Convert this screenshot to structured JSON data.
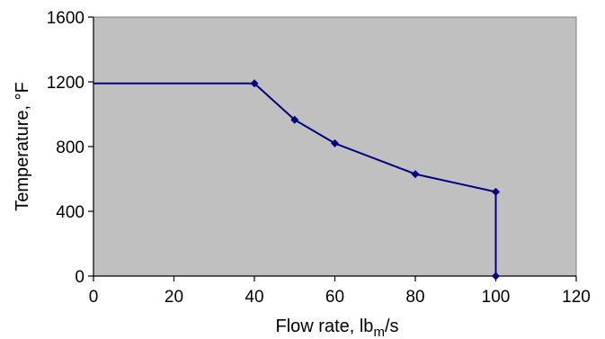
{
  "chart_data": {
    "type": "line",
    "xlabel_main": "Flow rate, lb",
    "xlabel_sub": "m",
    "xlabel_tail": "/s",
    "ylabel": "Temperature, °F",
    "xlim": [
      0,
      120
    ],
    "ylim": [
      0,
      1600
    ],
    "xticks": [
      "0",
      "20",
      "40",
      "60",
      "80",
      "100",
      "120"
    ],
    "yticks": [
      "0",
      "400",
      "800",
      "1200",
      "1600"
    ],
    "grid": false,
    "plot_background": "#C0C0C0",
    "series_color": "#000080",
    "series": [
      {
        "x": [
          0,
          40,
          50,
          60,
          80,
          100,
          100
        ],
        "values": [
          1190,
          1190,
          965,
          820,
          630,
          520,
          0
        ],
        "markers": [
          false,
          true,
          true,
          true,
          true,
          true,
          true
        ]
      }
    ]
  }
}
